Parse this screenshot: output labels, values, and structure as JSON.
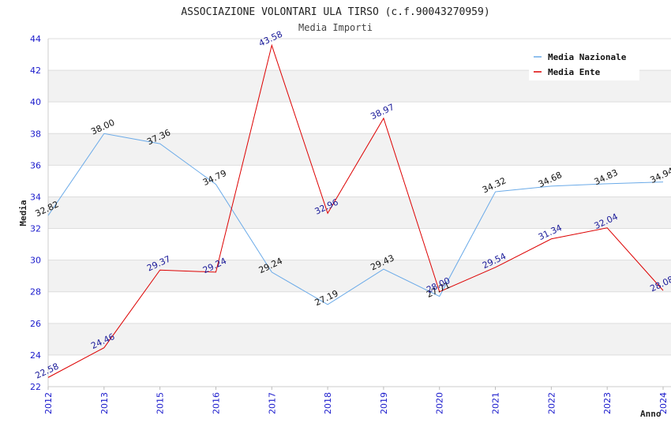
{
  "chart_data": {
    "type": "line",
    "title": "ASSOCIAZIONE VOLONTARI ULA TIRSO (c.f.90043270959)",
    "subtitle": "Media Importi",
    "xlabel": "Anno",
    "ylabel": "Media",
    "ylim": [
      22,
      44
    ],
    "yticks": [
      "22",
      "24",
      "26",
      "28",
      "30",
      "32",
      "34",
      "36",
      "38",
      "40",
      "42",
      "44"
    ],
    "categories": [
      "2012",
      "2013",
      "2015",
      "2016",
      "2017",
      "2018",
      "2019",
      "2020",
      "2021",
      "2022",
      "2023",
      "2024"
    ],
    "legend_position": "top-right",
    "series": [
      {
        "name": "Media Nazionale",
        "color": "#6aaae8",
        "values": [
          32.82,
          38.0,
          37.36,
          34.79,
          29.24,
          27.19,
          29.43,
          27.71,
          34.32,
          34.68,
          34.83,
          34.94
        ],
        "labels": [
          "32.82",
          "38.00",
          "37.36",
          "34.79",
          "29.24",
          "27.19",
          "29.43",
          "27.71",
          "34.32",
          "34.68",
          "34.83",
          "34.94"
        ]
      },
      {
        "name": "Media Ente",
        "color": "#dd0000",
        "values": [
          22.58,
          24.46,
          29.37,
          29.24,
          43.58,
          32.96,
          38.97,
          28.0,
          29.54,
          31.34,
          32.04,
          28.08
        ],
        "labels": [
          "22.58",
          "24.46",
          "29.37",
          "29.24",
          "43.58",
          "32.96",
          "38.97",
          "28.00",
          "29.54",
          "31.34",
          "32.04",
          "28.08"
        ]
      }
    ]
  }
}
